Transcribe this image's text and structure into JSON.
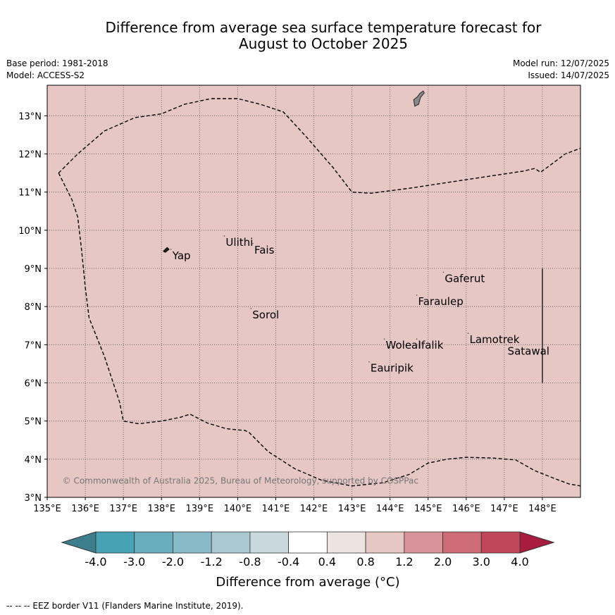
{
  "header": {
    "title_line1": "Difference from average sea surface temperature forecast for",
    "title_line2": "August to October 2025",
    "base_period": "Base period: 1981-2018",
    "model": "Model: ACCESS-S2",
    "model_run": "Model run: 12/07/2025",
    "issued": "Issued: 14/07/2025"
  },
  "map": {
    "lon_range": [
      135,
      149
    ],
    "lat_range": [
      3,
      13.8
    ],
    "background_color": "#e6c7c3",
    "lon_ticks": [
      {
        "value": 135,
        "label": "135°E"
      },
      {
        "value": 136,
        "label": "136°E"
      },
      {
        "value": 137,
        "label": "137°E"
      },
      {
        "value": 138,
        "label": "138°E"
      },
      {
        "value": 139,
        "label": "139°E"
      },
      {
        "value": 140,
        "label": "140°E"
      },
      {
        "value": 141,
        "label": "141°E"
      },
      {
        "value": 142,
        "label": "142°E"
      },
      {
        "value": 143,
        "label": "143°E"
      },
      {
        "value": 144,
        "label": "144°E"
      },
      {
        "value": 145,
        "label": "145°E"
      },
      {
        "value": 146,
        "label": "146°E"
      },
      {
        "value": 147,
        "label": "147°E"
      },
      {
        "value": 148,
        "label": "148°E"
      }
    ],
    "lat_ticks": [
      {
        "value": 3,
        "label": "3°N"
      },
      {
        "value": 4,
        "label": "4°N"
      },
      {
        "value": 5,
        "label": "5°N"
      },
      {
        "value": 6,
        "label": "6°N"
      },
      {
        "value": 7,
        "label": "7°N"
      },
      {
        "value": 8,
        "label": "8°N"
      },
      {
        "value": 9,
        "label": "9°N"
      },
      {
        "value": 10,
        "label": "10°N"
      },
      {
        "value": 11,
        "label": "11°N"
      },
      {
        "value": 12,
        "label": "12°N"
      },
      {
        "value": 13,
        "label": "13°N"
      }
    ],
    "places": [
      {
        "name": "Yap",
        "lon": 138.25,
        "lat": 9.5
      },
      {
        "name": "Ulithi",
        "lon": 139.65,
        "lat": 9.85
      },
      {
        "name": "Fais",
        "lon": 140.4,
        "lat": 9.65
      },
      {
        "name": "Sorol",
        "lon": 140.35,
        "lat": 7.95
      },
      {
        "name": "Gaferut",
        "lon": 145.4,
        "lat": 8.9
      },
      {
        "name": "Faraulep",
        "lon": 144.7,
        "lat": 8.3
      },
      {
        "name": "Lamotrek",
        "lon": 146.05,
        "lat": 7.3
      },
      {
        "name": "Satawal",
        "lon": 147.05,
        "lat": 7.0
      },
      {
        "name": "Woleai",
        "lon": 143.85,
        "lat": 7.15
      },
      {
        "name": "Ifalik",
        "lon": 144.7,
        "lat": 7.15
      },
      {
        "name": "Eauripik",
        "lon": 143.45,
        "lat": 6.55
      }
    ],
    "eez_border_top": [
      [
        135.3,
        11.5
      ],
      [
        135.8,
        12.0
      ],
      [
        136.5,
        12.6
      ],
      [
        137.3,
        12.95
      ],
      [
        138.0,
        13.05
      ],
      [
        138.6,
        13.3
      ],
      [
        139.3,
        13.45
      ],
      [
        140.0,
        13.45
      ],
      [
        140.6,
        13.3
      ],
      [
        141.2,
        13.1
      ],
      [
        141.8,
        12.45
      ],
      [
        142.5,
        11.65
      ],
      [
        143.0,
        11.0
      ],
      [
        143.5,
        10.97
      ],
      [
        144.5,
        11.1
      ],
      [
        145.5,
        11.25
      ],
      [
        146.5,
        11.4
      ],
      [
        147.5,
        11.55
      ],
      [
        147.8,
        11.62
      ],
      [
        147.95,
        11.52
      ],
      [
        148.2,
        11.7
      ],
      [
        148.6,
        12.0
      ],
      [
        149.0,
        12.15
      ]
    ],
    "eez_border_main": [
      [
        135.3,
        11.5
      ],
      [
        135.65,
        10.8
      ],
      [
        135.8,
        10.35
      ],
      [
        135.9,
        9.5
      ],
      [
        136.0,
        8.5
      ],
      [
        136.1,
        7.7
      ],
      [
        136.5,
        6.7
      ],
      [
        136.9,
        5.5
      ],
      [
        137.0,
        5.0
      ],
      [
        137.4,
        4.93
      ],
      [
        138.0,
        5.0
      ],
      [
        138.5,
        5.1
      ],
      [
        138.75,
        5.18
      ],
      [
        139.2,
        4.95
      ],
      [
        139.7,
        4.8
      ],
      [
        140.2,
        4.75
      ],
      [
        140.3,
        4.7
      ],
      [
        140.8,
        4.2
      ],
      [
        141.5,
        3.75
      ],
      [
        142.2,
        3.45
      ],
      [
        143.0,
        3.3
      ],
      [
        143.8,
        3.38
      ],
      [
        144.5,
        3.6
      ],
      [
        145.0,
        3.9
      ],
      [
        145.5,
        4.0
      ],
      [
        146.0,
        4.05
      ],
      [
        146.7,
        4.03
      ],
      [
        147.3,
        3.98
      ],
      [
        147.8,
        3.7
      ],
      [
        148.3,
        3.5
      ],
      [
        148.7,
        3.35
      ],
      [
        149.0,
        3.3
      ]
    ],
    "vertical_line": {
      "lon": 148.0,
      "lat_from": 6.0,
      "lat_to": 9.0
    },
    "guam_outline": [
      [
        144.62,
        13.42
      ],
      [
        144.72,
        13.5
      ],
      [
        144.78,
        13.58
      ],
      [
        144.87,
        13.65
      ],
      [
        144.9,
        13.6
      ],
      [
        144.8,
        13.48
      ],
      [
        144.75,
        13.3
      ],
      [
        144.65,
        13.25
      ],
      [
        144.62,
        13.42
      ]
    ],
    "yap_outline": [
      [
        138.05,
        9.45
      ],
      [
        138.15,
        9.55
      ],
      [
        138.2,
        9.5
      ],
      [
        138.1,
        9.42
      ],
      [
        138.05,
        9.45
      ]
    ],
    "copyright": "© Commonwealth of Australia 2025, Bureau of Meteorology, supported by COSPPac"
  },
  "colorbar": {
    "label": "Difference from average (°C)",
    "tick_labels": [
      "-4.0",
      "-3.0",
      "-2.0",
      "-1.2",
      "-0.8",
      "-0.4",
      "0.4",
      "0.8",
      "1.2",
      "2.0",
      "3.0",
      "4.0"
    ],
    "colors": [
      "#46a2b4",
      "#68aebd",
      "#88bac7",
      "#a9c9d0",
      "#c9d8dc",
      "#ffffff",
      "#ede4e2",
      "#e6c7c3",
      "#d8929a",
      "#cd6b77",
      "#c0465a"
    ],
    "low_extend_color": "#3d7e8c",
    "high_extend_color": "#a81d3d"
  },
  "footer": {
    "legend": "--  --  -- EEZ border V11 (Flanders Marine Institute, 2019)."
  }
}
